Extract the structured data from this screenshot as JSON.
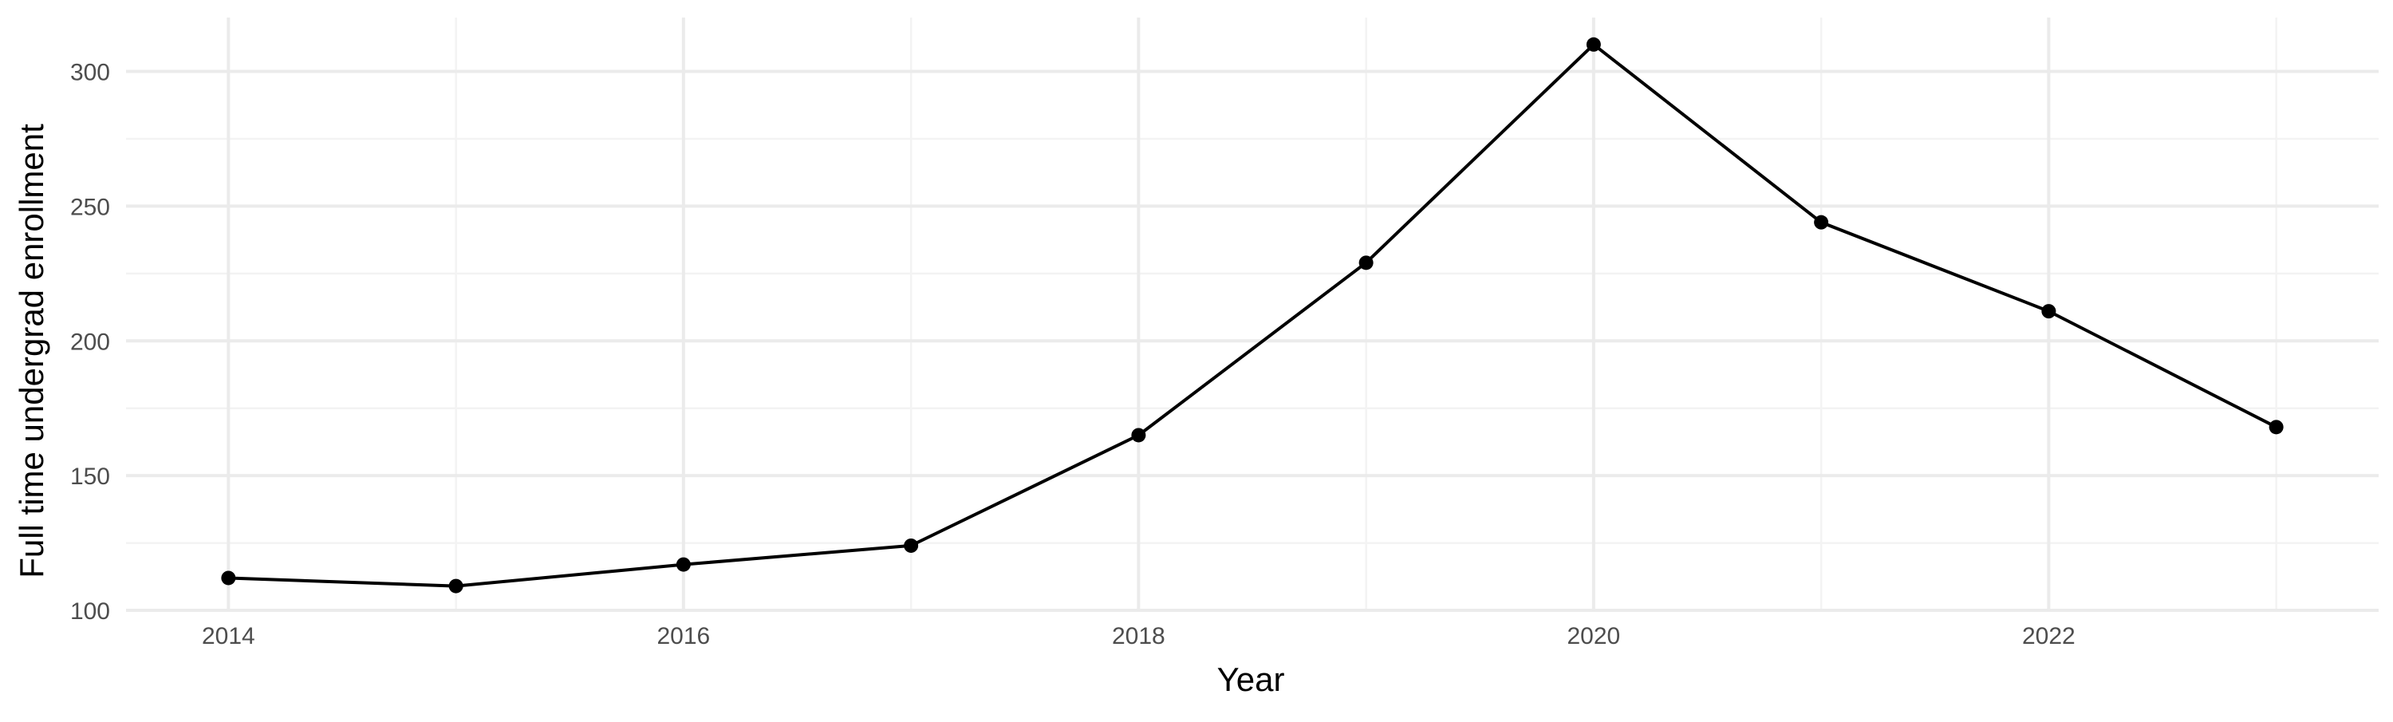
{
  "chart_data": {
    "type": "line",
    "xlabel": "Year",
    "ylabel": "Full time undergrad enrollment",
    "x": [
      2014,
      2015,
      2016,
      2017,
      2018,
      2019,
      2020,
      2021,
      2022,
      2023
    ],
    "series": [
      {
        "values": [
          112,
          109,
          117,
          124,
          165,
          229,
          310,
          244,
          211,
          168
        ]
      }
    ],
    "xlim": [
      2013.55,
      2023.45
    ],
    "ylim": [
      100,
      320
    ],
    "x_ticks": [
      2014,
      2016,
      2018,
      2020,
      2022
    ],
    "x_tick_labels": [
      "2014",
      "2016",
      "2018",
      "2020",
      "2022"
    ],
    "x_minor_ticks": [
      2015,
      2017,
      2019,
      2021,
      2023
    ],
    "y_ticks": [
      100,
      150,
      200,
      250,
      300
    ],
    "y_tick_labels": [
      "100",
      "150",
      "200",
      "250",
      "300"
    ],
    "y_minor_ticks": [
      125,
      175,
      225,
      275
    ],
    "grid": true,
    "legend": "none",
    "line_color": "#000000",
    "grid_color": "#ebebeb"
  }
}
